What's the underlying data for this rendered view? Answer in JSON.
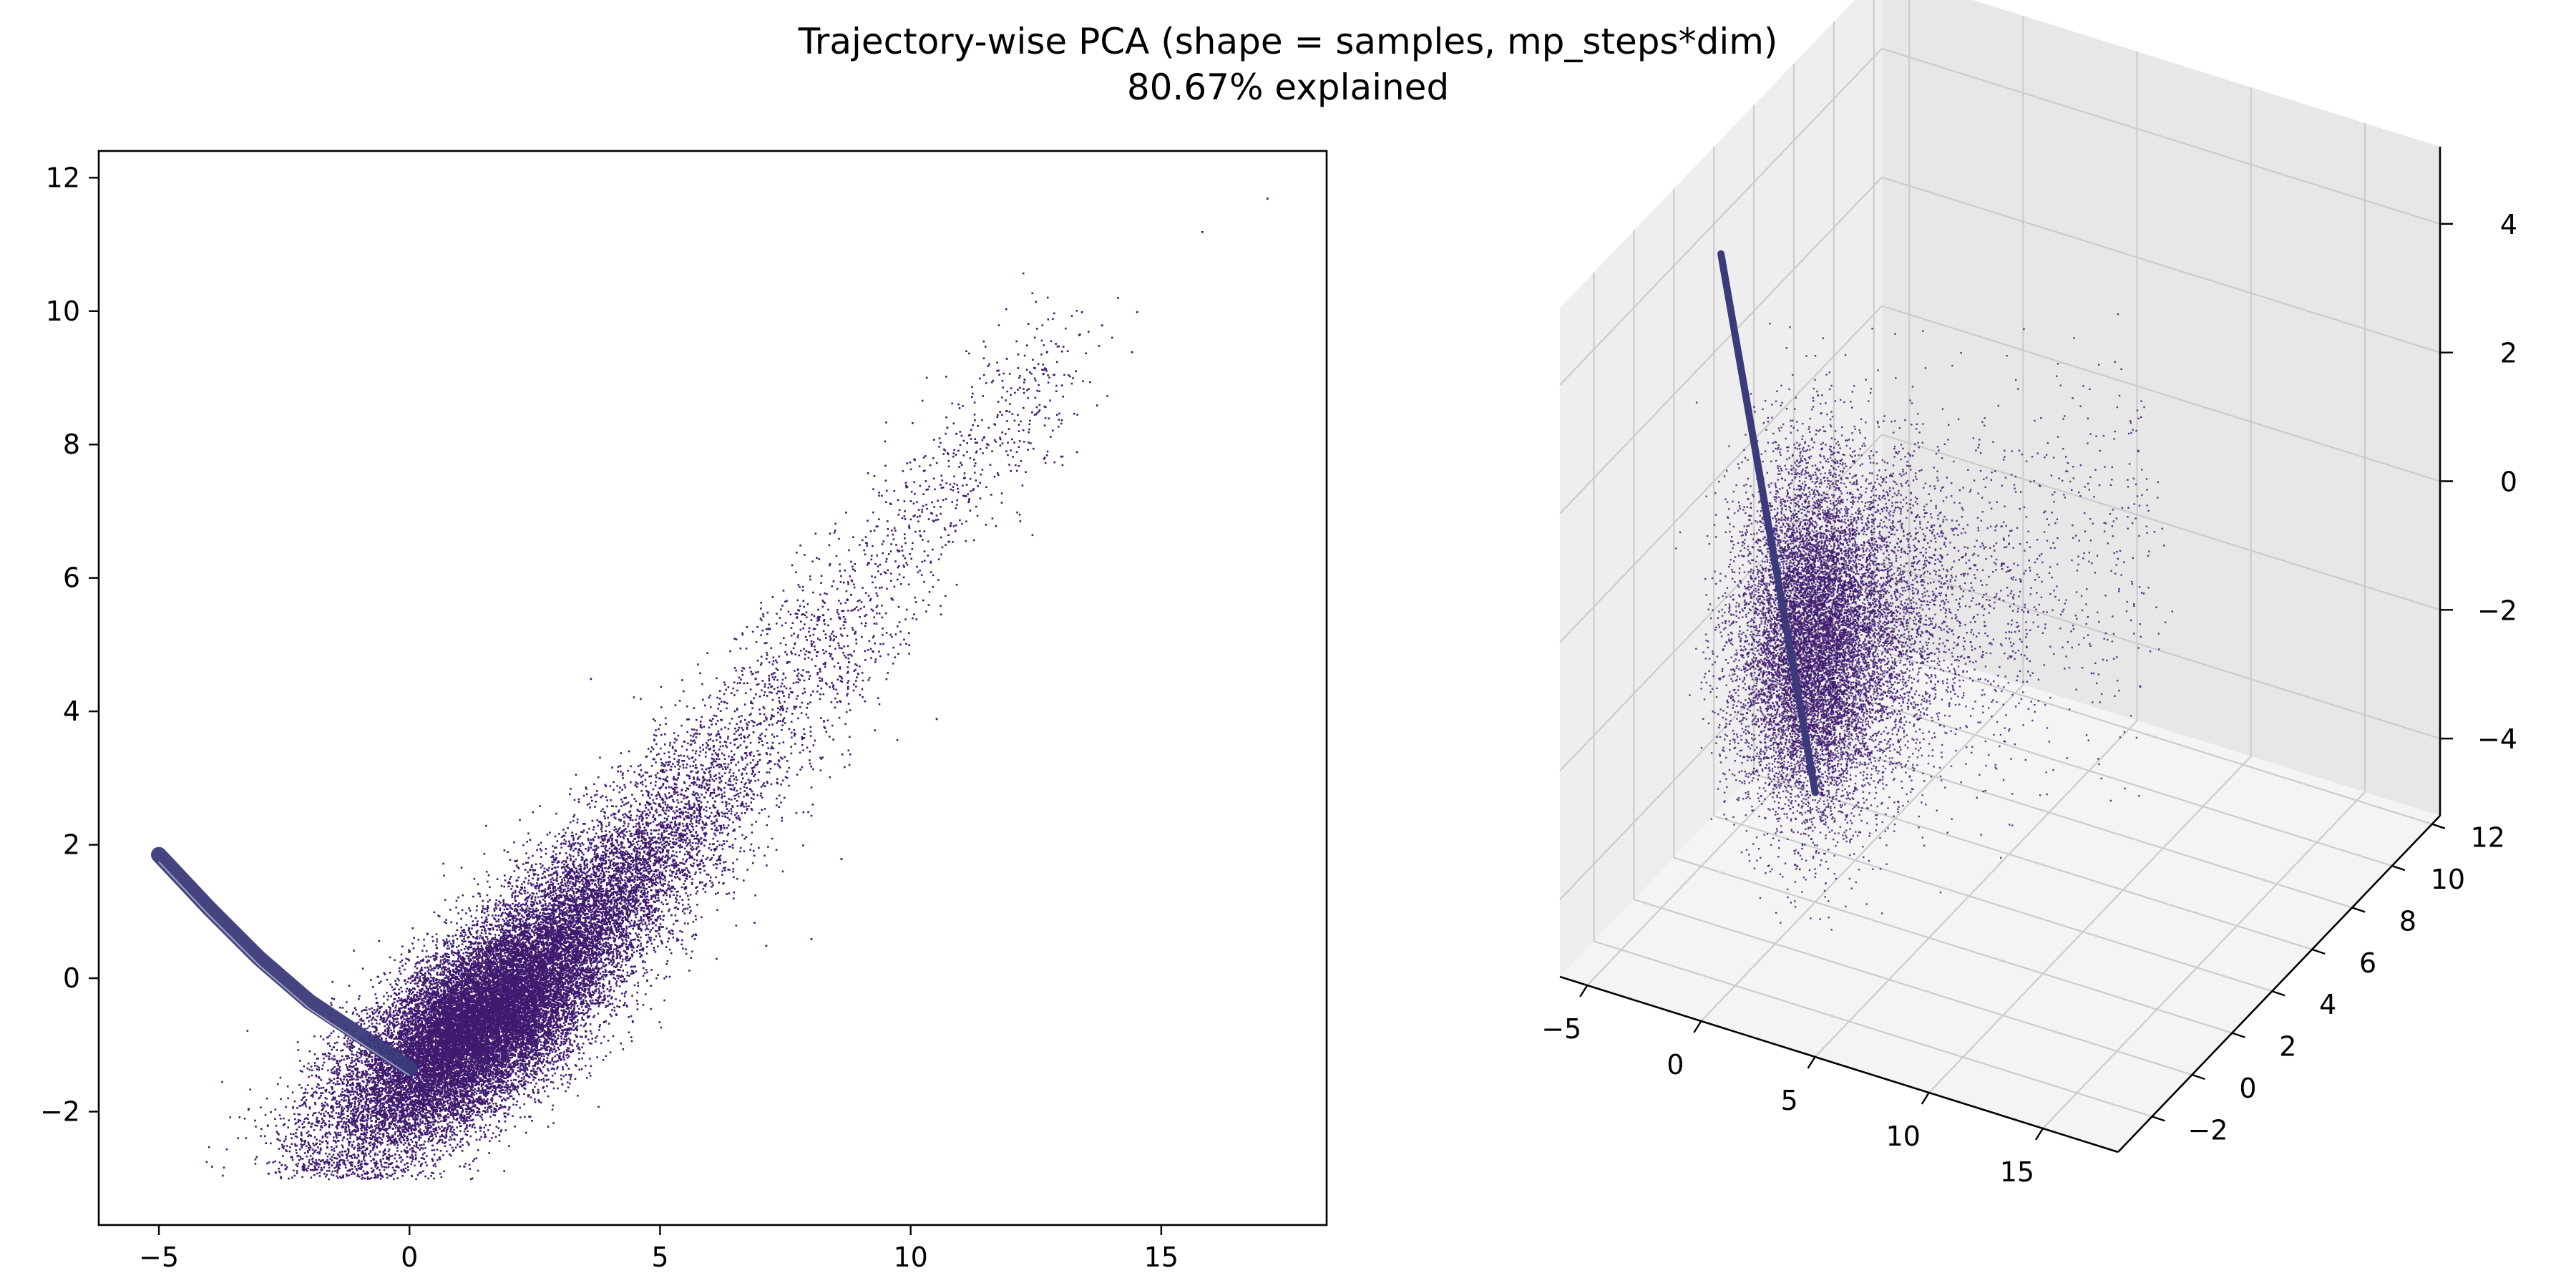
{
  "figure": {
    "title_line1": "Trajectory-wise PCA (shape = samples, mp_steps*dim)",
    "title_line2": "80.67% explained"
  },
  "colors": {
    "points": "#3f1a6e",
    "band": "#3b3a7a",
    "pane_left": "#eeeeee",
    "pane_right": "#e7e7e7",
    "pane_floor": "#f4f4f4",
    "grid": "#cccccc"
  },
  "chart_data": [
    {
      "type": "scatter",
      "subplot": "left",
      "title": "",
      "xlabel": "",
      "ylabel": "",
      "xlim": [
        -6.2,
        18.3
      ],
      "ylim": [
        -3.7,
        12.4
      ],
      "xticks": [
        -5,
        0,
        5,
        10,
        15
      ],
      "yticks": [
        -2,
        0,
        2,
        4,
        6,
        8,
        10,
        12
      ],
      "grid": false,
      "series": [
        {
          "kind": "dense-cloud",
          "description_points": "cluster centered near (1.5,-0.5) elongated toward (9,6)",
          "center": [
            1.6,
            -0.4
          ],
          "direction_end": [
            9.0,
            5.5
          ]
        },
        {
          "kind": "curved-band",
          "points": [
            [
              -5.0,
              1.85
            ],
            [
              -4.0,
              1.05
            ],
            [
              -3.0,
              0.3
            ],
            [
              -2.0,
              -0.35
            ],
            [
              -1.0,
              -0.85
            ],
            [
              0.0,
              -1.35
            ]
          ]
        },
        {
          "kind": "outliers",
          "points": [
            [
              17.1,
              11.7
            ],
            [
              15.8,
              11.2
            ],
            [
              14.5,
              10.0
            ],
            [
              13.4,
              10.0
            ],
            [
              13.8,
              9.8
            ],
            [
              14.4,
              9.4
            ],
            [
              12.3,
              9.5
            ],
            [
              11.9,
              9.3
            ],
            [
              13.0,
              8.9
            ],
            [
              13.7,
              8.6
            ],
            [
              13.3,
              7.9
            ],
            [
              8.0,
              0.6
            ],
            [
              8.6,
              1.8
            ],
            [
              7.1,
              0.5
            ],
            [
              3.6,
              4.5
            ],
            [
              10.5,
              3.9
            ]
          ]
        }
      ]
    },
    {
      "type": "scatter3d",
      "subplot": "right",
      "title": "",
      "xticks": [
        -5,
        0,
        5,
        10,
        15
      ],
      "yticks": [
        -2,
        0,
        2,
        4,
        6,
        8,
        10,
        12
      ],
      "zticks": [
        -4,
        -2,
        0,
        2,
        4
      ],
      "xlim": [
        -6.2,
        18.3
      ],
      "ylim": [
        -3.7,
        12.4
      ],
      "zlim": [
        -5.2,
        5.2
      ],
      "grid": true
    }
  ]
}
